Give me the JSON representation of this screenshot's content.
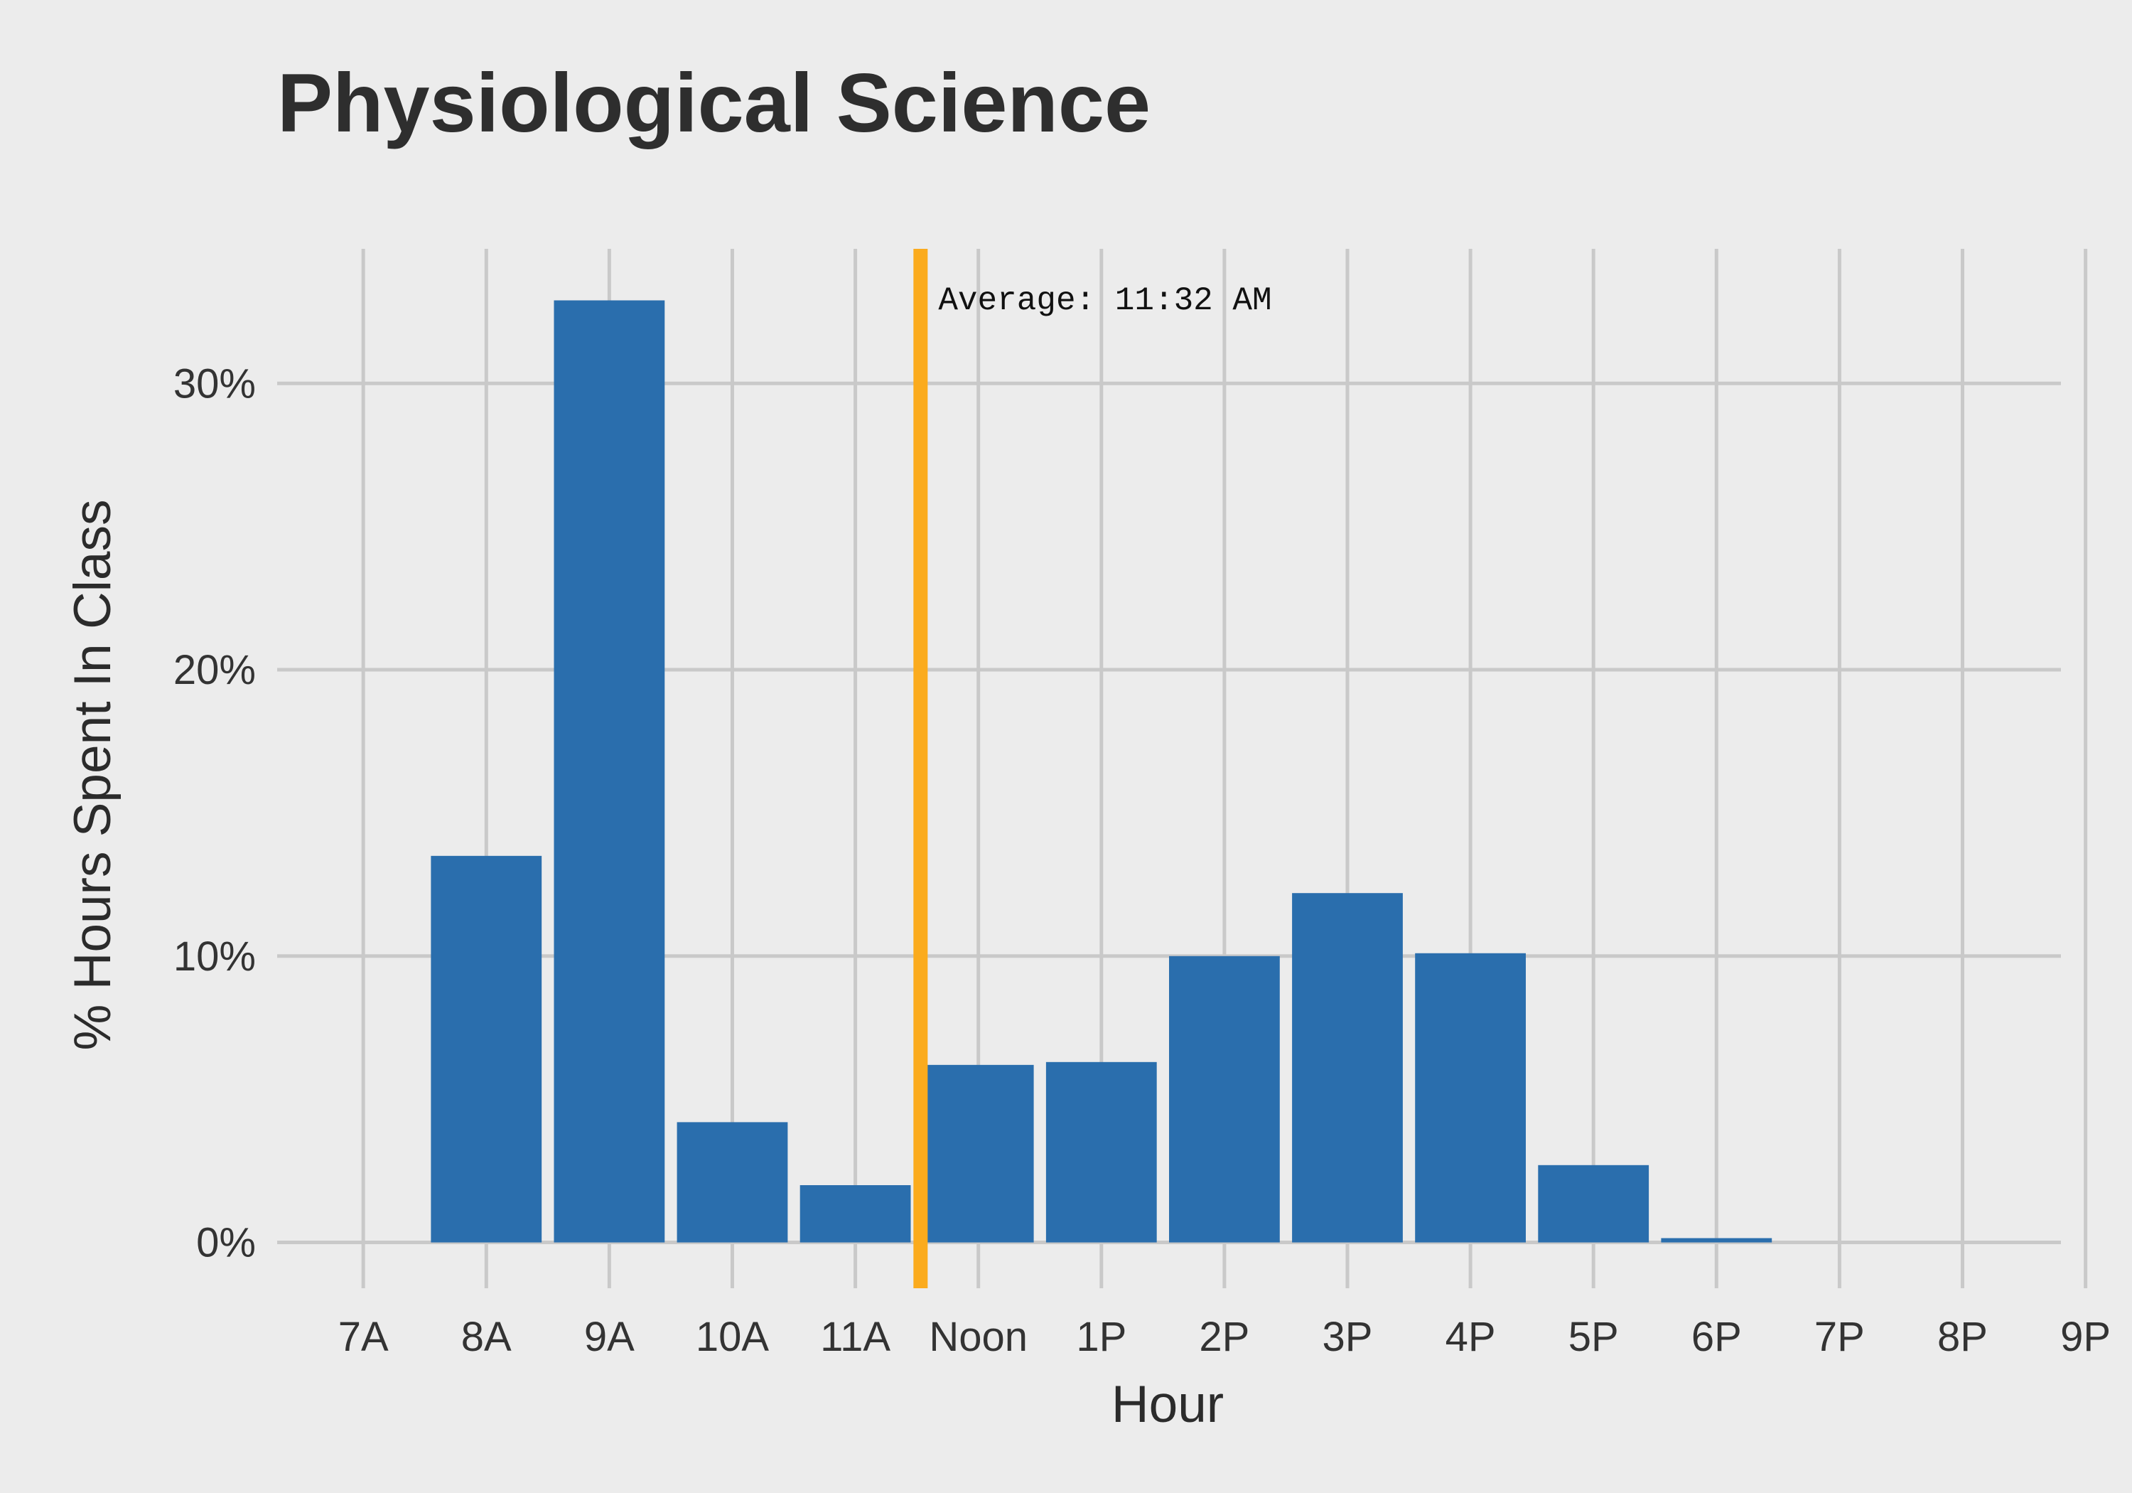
{
  "chart_data": {
    "type": "bar",
    "title": "Physiological Science",
    "xlabel": "Hour",
    "ylabel": "% Hours Spent In Class",
    "categories": [
      "7A",
      "8A",
      "9A",
      "10A",
      "11A",
      "Noon",
      "1P",
      "2P",
      "3P",
      "4P",
      "5P",
      "6P",
      "7P",
      "8P",
      "9P"
    ],
    "values": [
      0,
      13.5,
      32.9,
      4.2,
      2.0,
      6.2,
      6.3,
      10.0,
      12.2,
      10.1,
      2.7,
      0.15,
      0,
      0,
      0
    ],
    "ylim": [
      -1.6,
      34.7
    ],
    "yticks": [
      0,
      10,
      20,
      30
    ],
    "ytick_labels": [
      "0%",
      "10%",
      "20%",
      "30%"
    ],
    "grid": true,
    "reference_line": {
      "x_value": 4.53,
      "label": "Average: 11:32 AM",
      "color": "#fbab1d"
    },
    "colors": {
      "bar": "#2a6ead",
      "grid": "#c9c9c9",
      "background": "#ececec"
    }
  }
}
